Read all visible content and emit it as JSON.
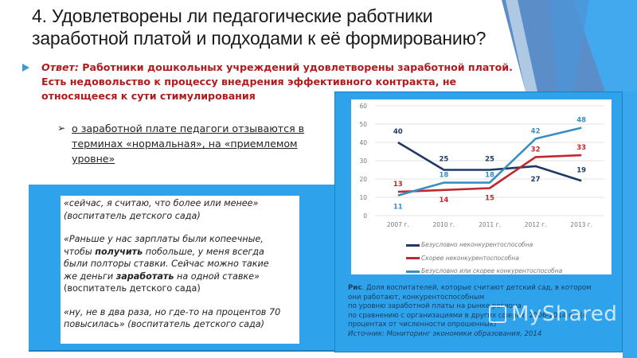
{
  "slide": {
    "title_line1": "4. Удовлетворены ли педагогические работники",
    "title_line2": "заработной платой и подходами к её формированию?",
    "answer": {
      "label": "Ответ:",
      "text_line1": " Работники дошкольных учреждений удовлетворены заработной платой.",
      "text_line2": "Есть недовольство к процессу внедрения эффективного контракта, не",
      "text_line3": "относящееся к сути стимулирования"
    },
    "sub_bullet": {
      "line1": "о заработной плате педагоги отзываются в",
      "line2": "терминах «нормальная», на «приемлемом",
      "line3": "уровне»"
    },
    "quotes": [
      {
        "line1": "«сейчас, я считаю, что более или менее»",
        "line2": "(воспитатель детского сада)"
      },
      {
        "line1": "«Раньше у нас зарплаты были копеечные,",
        "line2a": "чтобы ",
        "line2b": "получить",
        "line2c": " побольше, у меня всегда",
        "line3": "были полторы ставки. Сейчас можно такие",
        "line4a": "же деньги ",
        "line4b": "заработать",
        "line4c": " на одной ставке»",
        "line5": "(воспитатель детского сада)"
      },
      {
        "line1": "«ну, не в два раза, но где-то на процентов 70",
        "line2": "повысилась» (воспитатель детского сада)"
      }
    ],
    "caption": {
      "label": "Рис",
      "line1": ". Доля воспитателей, которые считают детский сад, в котором",
      "line2": "они работают, конкурентоспособным",
      "line3": "по уровню заработной платы на рынке региона",
      "line4": "по сравнению с организациями в других сферах, 2006-2014 гг. (в",
      "line5": "процентах от численности опрошенных)",
      "source": "Источник: Мониторинг экономики образования, 2014"
    },
    "watermark": "MyShared"
  },
  "colors": {
    "accent_blue": "#2ea3ec",
    "answer_red": "#b01c1c",
    "series_dark": "#1f3864",
    "series_red": "#c0282d",
    "series_teal": "#3a8fc0"
  },
  "chart_data": {
    "type": "line",
    "title": "",
    "xlabel": "",
    "ylabel": "",
    "categories": [
      "2007 г.",
      "2010 г.",
      "2011 г.",
      "2012 г.",
      "2013 г."
    ],
    "ylim": [
      0,
      60
    ],
    "yticks": [
      0,
      10,
      20,
      30,
      40,
      50,
      60
    ],
    "grid": true,
    "legend_position": "bottom",
    "series": [
      {
        "name": "Безусловно неконкурентоспособна",
        "color": "#1f3864",
        "values": [
          40,
          25,
          25,
          27,
          19
        ]
      },
      {
        "name": "Скорее неконкурентоспособна",
        "color": "#c0282d",
        "values": [
          13,
          14,
          15,
          32,
          33
        ]
      },
      {
        "name": "Безусловно или скорее конкурентоспособна",
        "color": "#3a8fc0",
        "values": [
          11,
          18,
          18,
          42,
          48
        ]
      }
    ]
  }
}
